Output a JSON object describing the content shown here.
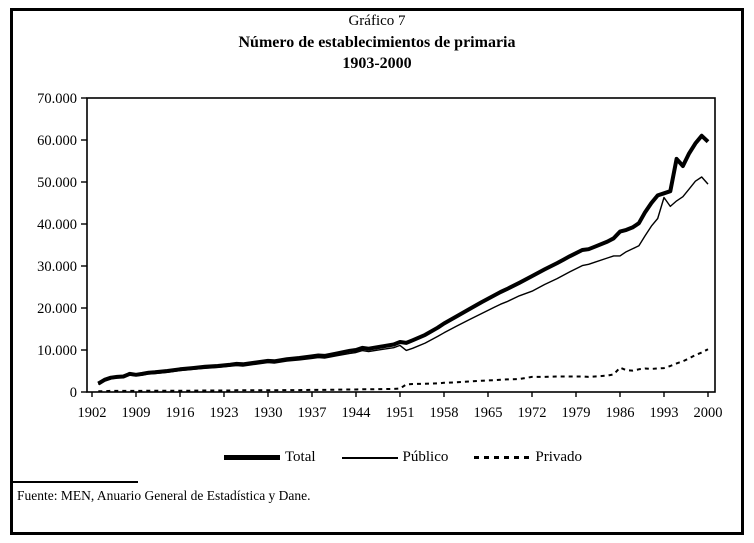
{
  "header": {
    "label": "Gráfico 7",
    "title": "Número de establecimientos de primaria",
    "subtitle": "1903-2000"
  },
  "legend": {
    "items": [
      {
        "label": "Total"
      },
      {
        "label": "Público"
      },
      {
        "label": "Privado"
      }
    ]
  },
  "footer": {
    "source": "Fuente: MEN, Anuario General de Estadística y Dane."
  },
  "chart_data": {
    "type": "line",
    "title": "Gráfico 7",
    "subtitle": "Número de establecimientos de primaria 1903-2000",
    "xlabel": "",
    "ylabel": "",
    "grid": false,
    "legend_position": "bottom",
    "ylim": [
      0,
      70000
    ],
    "yticks": {
      "values": [
        0,
        10000,
        20000,
        30000,
        40000,
        50000,
        60000,
        70000
      ],
      "labels": [
        "0",
        "10.000",
        "20.000",
        "30.000",
        "40.000",
        "50.000",
        "60.000",
        "70.000"
      ]
    },
    "xticks": {
      "values": [
        1902,
        1909,
        1916,
        1923,
        1930,
        1937,
        1944,
        1951,
        1958,
        1965,
        1972,
        1979,
        1986,
        1993,
        2000
      ],
      "labels": [
        "1902",
        "1909",
        "1916",
        "1923",
        "1930",
        "1937",
        "1944",
        "1951",
        "1958",
        "1965",
        "1972",
        "1979",
        "1986",
        "1993",
        "2000"
      ]
    },
    "x": [
      1903,
      1904,
      1905,
      1906,
      1907,
      1908,
      1909,
      1910,
      1911,
      1912,
      1914,
      1916,
      1918,
      1920,
      1922,
      1924,
      1925,
      1926,
      1928,
      1930,
      1931,
      1933,
      1935,
      1937,
      1938,
      1939,
      1941,
      1943,
      1944,
      1945,
      1946,
      1948,
      1950,
      1951,
      1952,
      1953,
      1955,
      1957,
      1958,
      1960,
      1962,
      1964,
      1966,
      1967,
      1968,
      1970,
      1972,
      1974,
      1976,
      1977,
      1978,
      1980,
      1981,
      1982,
      1984,
      1985,
      1986,
      1987,
      1988,
      1989,
      1990,
      1991,
      1992,
      1993,
      1994,
      1995,
      1996,
      1997,
      1998,
      1999,
      2000
    ],
    "series": [
      {
        "name": "Total",
        "color": "#000000",
        "stroke_width": 4,
        "dash": null,
        "values": [
          2000,
          2900,
          3400,
          3600,
          3700,
          4300,
          4100,
          4300,
          4600,
          4700,
          5000,
          5400,
          5700,
          6000,
          6200,
          6500,
          6700,
          6600,
          7000,
          7400,
          7300,
          7800,
          8100,
          8500,
          8700,
          8600,
          9200,
          9800,
          10000,
          10500,
          10300,
          10800,
          11300,
          11900,
          11700,
          12300,
          13600,
          15300,
          16300,
          18000,
          19700,
          21400,
          23000,
          23800,
          24500,
          26000,
          27600,
          29200,
          30700,
          31500,
          32300,
          33800,
          34000,
          34600,
          35800,
          36600,
          38200,
          38600,
          39200,
          40200,
          42800,
          45000,
          46800,
          47300,
          47800,
          55500,
          53800,
          56800,
          59200,
          61000,
          59600
        ]
      },
      {
        "name": "Público",
        "color": "#000000",
        "stroke_width": 1.4,
        "dash": null,
        "values": [
          1800,
          2700,
          3150,
          3350,
          3450,
          4050,
          3850,
          4050,
          4300,
          4400,
          4700,
          5100,
          5400,
          5650,
          5850,
          6150,
          6300,
          6200,
          6600,
          7000,
          6900,
          7350,
          7650,
          8000,
          8200,
          8100,
          8650,
          9200,
          9400,
          9850,
          9650,
          10100,
          10550,
          11100,
          9900,
          10400,
          11650,
          13250,
          14100,
          15700,
          17200,
          18700,
          20200,
          20900,
          21500,
          22900,
          24000,
          25600,
          27000,
          27800,
          28600,
          30100,
          30400,
          30900,
          31900,
          32400,
          32400,
          33400,
          34100,
          34800,
          37200,
          39500,
          41300,
          46300,
          44200,
          45500,
          46500,
          48300,
          50200,
          51200,
          49500
        ]
      },
      {
        "name": "Privado",
        "color": "#000000",
        "stroke_width": 2,
        "dash": "4 4",
        "values": [
          200,
          200,
          250,
          250,
          250,
          250,
          250,
          250,
          300,
          300,
          300,
          300,
          300,
          350,
          350,
          350,
          400,
          400,
          400,
          400,
          400,
          450,
          450,
          500,
          500,
          500,
          550,
          600,
          600,
          650,
          650,
          700,
          750,
          800,
          1800,
          1900,
          1950,
          2050,
          2200,
          2300,
          2500,
          2700,
          2800,
          2900,
          3000,
          3100,
          3600,
          3600,
          3700,
          3700,
          3700,
          3700,
          3600,
          3700,
          3900,
          4200,
          5800,
          5200,
          5100,
          5400,
          5600,
          5500,
          5600,
          5700,
          6200,
          6800,
          7300,
          8000,
          8800,
          9400,
          10200
        ]
      }
    ]
  }
}
